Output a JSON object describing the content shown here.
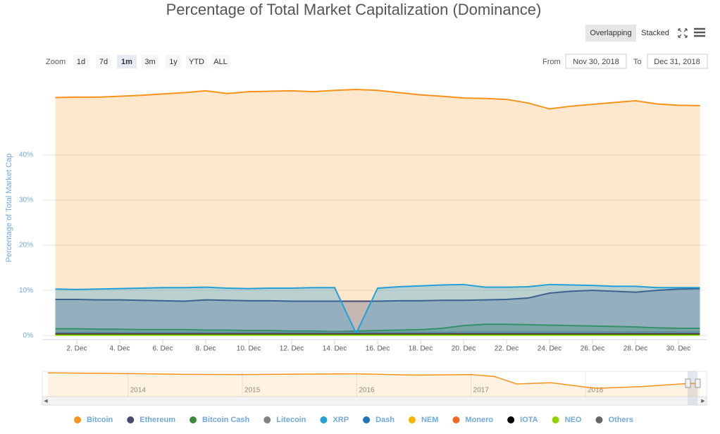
{
  "chart_data": {
    "type": "area",
    "title": "Percentage of Total Market Capitalization (Dominance)",
    "y_label": "Percentage of Total Market Cap",
    "categories": [
      null,
      "2. Dec",
      null,
      "4. Dec",
      null,
      "6. Dec",
      null,
      "8. Dec",
      null,
      "10. Dec",
      null,
      "12. Dec",
      null,
      "14. Dec",
      null,
      "16. Dec",
      null,
      "18. Dec",
      null,
      "20. Dec",
      null,
      "22. Dec",
      null,
      "24. Dec",
      null,
      "26. Dec",
      null,
      "28. Dec",
      null,
      "30. Dec",
      null
    ],
    "ylim": [
      -0.9,
      55.9
    ],
    "yticks": [
      {
        "value": 0,
        "label": "0%"
      },
      {
        "value": 10,
        "label": "10%"
      },
      {
        "value": 20,
        "label": "20%"
      },
      {
        "value": 30,
        "label": "30%"
      },
      {
        "value": 40,
        "label": "40%"
      }
    ],
    "grid": true,
    "legend": "bottom",
    "series": [
      {
        "name": "Bitcoin",
        "color": "#f7931a",
        "values": [
          52.7,
          52.8,
          52.8,
          53.0,
          53.2,
          53.5,
          53.8,
          54.2,
          53.6,
          54.0,
          54.1,
          54.2,
          54.0,
          54.3,
          54.5,
          54.3,
          53.8,
          53.3,
          53.0,
          52.6,
          52.5,
          52.3,
          51.5,
          50.2,
          50.8,
          51.2,
          51.6,
          52.0,
          51.3,
          51.0,
          50.9
        ]
      },
      {
        "name": "Ethereum",
        "color": "#454a75",
        "values": [
          8.0,
          8.0,
          7.9,
          7.9,
          7.8,
          7.7,
          7.6,
          7.9,
          7.8,
          7.7,
          7.7,
          7.6,
          7.6,
          7.6,
          7.6,
          7.6,
          7.7,
          7.7,
          7.8,
          7.8,
          7.9,
          8.0,
          8.3,
          9.4,
          9.8,
          10.0,
          9.8,
          9.6,
          10.0,
          10.3,
          10.4
        ]
      },
      {
        "name": "Bitcoin Cash",
        "color": "#3b8b3b",
        "values": [
          1.5,
          1.5,
          1.4,
          1.4,
          1.3,
          1.3,
          1.3,
          1.2,
          1.2,
          1.1,
          1.1,
          1.0,
          1.0,
          0.9,
          1.0,
          1.1,
          1.2,
          1.3,
          1.6,
          2.2,
          2.5,
          2.5,
          2.4,
          2.3,
          2.2,
          2.1,
          2.0,
          1.9,
          1.7,
          1.6,
          1.6
        ]
      },
      {
        "name": "Litecoin",
        "color": "#838383",
        "values": [
          0.7,
          0.7,
          0.7,
          0.7,
          0.7,
          0.7,
          0.7,
          0.7,
          0.7,
          0.7,
          0.7,
          0.7,
          0.7,
          0.7,
          0.7,
          0.7,
          0.7,
          0.7,
          0.7,
          0.8,
          0.8,
          0.8,
          0.8,
          0.8,
          0.8,
          0.8,
          0.8,
          0.8,
          0.8,
          0.8,
          0.8
        ]
      },
      {
        "name": "XRP",
        "color": "#23a0d8",
        "values": [
          10.3,
          10.2,
          10.3,
          10.4,
          10.5,
          10.6,
          10.6,
          10.7,
          10.5,
          10.4,
          10.5,
          10.5,
          10.6,
          10.6,
          0.5,
          10.5,
          10.8,
          11.0,
          11.2,
          11.3,
          10.7,
          10.7,
          10.8,
          11.3,
          11.2,
          11.1,
          10.9,
          10.9,
          10.6,
          10.6,
          10.6
        ]
      },
      {
        "name": "Dash",
        "color": "#1c75bc",
        "values": [
          0.4,
          0.4,
          0.4,
          0.4,
          0.4,
          0.4,
          0.4,
          0.4,
          0.4,
          0.4,
          0.4,
          0.4,
          0.4,
          0.4,
          0.4,
          0.4,
          0.4,
          0.4,
          0.4,
          0.4,
          0.4,
          0.4,
          0.4,
          0.4,
          0.4,
          0.4,
          0.4,
          0.4,
          0.4,
          0.4,
          0.4
        ]
      },
      {
        "name": "NEM",
        "color": "#f4b400",
        "values": [
          0.2,
          0.2,
          0.2,
          0.2,
          0.2,
          0.2,
          0.2,
          0.2,
          0.2,
          0.2,
          0.2,
          0.2,
          0.2,
          0.2,
          0.2,
          0.2,
          0.2,
          0.2,
          0.2,
          0.2,
          0.2,
          0.2,
          0.2,
          0.2,
          0.2,
          0.2,
          0.2,
          0.2,
          0.2,
          0.2,
          0.2
        ]
      },
      {
        "name": "Monero",
        "color": "#f26822",
        "values": [
          0.3,
          0.3,
          0.3,
          0.3,
          0.3,
          0.3,
          0.3,
          0.3,
          0.3,
          0.3,
          0.3,
          0.3,
          0.3,
          0.3,
          0.3,
          0.3,
          0.3,
          0.3,
          0.3,
          0.3,
          0.3,
          0.3,
          0.3,
          0.3,
          0.3,
          0.3,
          0.3,
          0.3,
          0.3,
          0.3,
          0.3
        ]
      },
      {
        "name": "IOTA",
        "color": "#000000",
        "values": [
          0.25,
          0.25,
          0.25,
          0.25,
          0.25,
          0.25,
          0.25,
          0.25,
          0.25,
          0.25,
          0.25,
          0.25,
          0.25,
          0.25,
          0.25,
          0.25,
          0.25,
          0.25,
          0.25,
          0.25,
          0.25,
          0.25,
          0.25,
          0.25,
          0.25,
          0.25,
          0.25,
          0.25,
          0.25,
          0.25,
          0.25
        ]
      },
      {
        "name": "NEO",
        "color": "#8fd400",
        "values": [
          0.1,
          0.1,
          0.1,
          0.1,
          0.1,
          0.1,
          0.1,
          0.1,
          0.1,
          0.1,
          0.1,
          0.1,
          0.1,
          0.1,
          0.1,
          0.1,
          0.1,
          0.1,
          0.1,
          0.1,
          0.1,
          0.1,
          0.1,
          0.1,
          0.1,
          0.1,
          0.1,
          0.1,
          0.1,
          0.1,
          0.1
        ]
      },
      {
        "name": "Others",
        "color": "#666666",
        "values": [
          null,
          null,
          null,
          null,
          null,
          null,
          null,
          null,
          null,
          null,
          null,
          null,
          null,
          null,
          null,
          null,
          null,
          null,
          null,
          null,
          null,
          null,
          null,
          null,
          null,
          null,
          null,
          null,
          null,
          null,
          null
        ]
      }
    ]
  },
  "navigator": {
    "x": [
      2013.3,
      2013.8,
      2014.5,
      2015.0,
      2015.5,
      2016.0,
      2016.5,
      2017.0,
      2017.2,
      2017.4,
      2017.7,
      2018.0,
      2018.1,
      2018.5,
      2018.9,
      2019.0
    ],
    "values": [
      94,
      92,
      88,
      87,
      89,
      90,
      85,
      87,
      80,
      50,
      55,
      38,
      33,
      40,
      52,
      52
    ],
    "xlim": [
      2013.25,
      2019.06
    ],
    "ylim": [
      0,
      100
    ],
    "xticks": [
      2014,
      2015,
      2016,
      2017,
      2018
    ],
    "color": "#f7931a"
  },
  "controls": {
    "zoom_label": "Zoom",
    "zoom_buttons": [
      "1d",
      "7d",
      "1m",
      "3m",
      "1y",
      "YTD",
      "ALL"
    ],
    "zoom_active": 2,
    "from_label": "From",
    "from": "Nov 30, 2018",
    "to_label": "To",
    "to": "Dec 31, 2018",
    "modes": [
      "Overlapping",
      "Stacked"
    ],
    "mode_active": 0
  }
}
